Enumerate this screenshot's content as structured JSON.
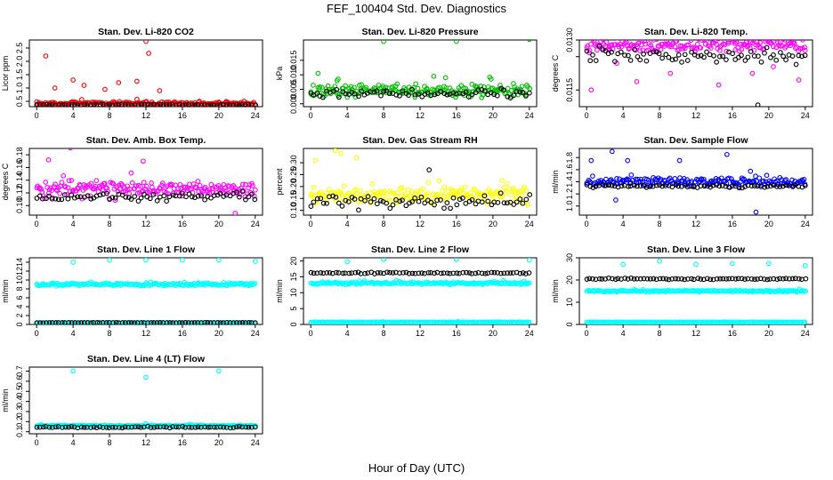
{
  "figure": {
    "title": "FEF_100404  Std. Dev. Diagnostics",
    "xlabel": "Hour of Day (UTC)"
  },
  "chart_data": [
    {
      "type": "scatter",
      "title": "Stan. Dev. Li-820 CO2",
      "ylabel": "Licor ppm",
      "color": "#ff0000",
      "xlim": [
        -0.8,
        24.8
      ],
      "ylim": [
        0.3,
        2.8
      ],
      "x_ticks": [
        0,
        4,
        8,
        12,
        16,
        20,
        24
      ],
      "y_ticks": [
        0.5,
        1.0,
        1.5,
        2.0,
        2.5
      ],
      "y_tick_labels": [
        "0.5",
        "1.0",
        "1.5",
        "2.0",
        "2.5"
      ],
      "series": [
        {
          "color": "#ff0000",
          "base": 0.42,
          "spread": 0.12,
          "outliers": [
            [
              1.0,
              2.2
            ],
            [
              12.0,
              2.75
            ],
            [
              12.3,
              2.3
            ],
            [
              4.0,
              1.3
            ],
            [
              9.0,
              1.2
            ],
            [
              5.2,
              1.1
            ],
            [
              2.0,
              1.0
            ],
            [
              11.0,
              1.25
            ],
            [
              7.5,
              0.95
            ],
            [
              13.5,
              0.9
            ]
          ]
        },
        {
          "color": "#000000",
          "base": 0.37,
          "spread": 0.03,
          "outliers": []
        }
      ]
    },
    {
      "type": "scatter",
      "title": "Stan. Dev. Li-820 Pressure",
      "ylabel": "kPa",
      "color": "#00c000",
      "xlim": [
        -0.8,
        24.8
      ],
      "ylim": [
        -0.001,
        0.022
      ],
      "x_ticks": [
        0,
        4,
        8,
        12,
        16,
        20,
        24
      ],
      "y_ticks": [
        0.0,
        0.005,
        0.01,
        0.015
      ],
      "y_tick_labels": [
        "0.000",
        "0.005",
        "0.010",
        "0.015"
      ],
      "series": [
        {
          "color": "#00c000",
          "base": 0.0045,
          "spread": 0.0035,
          "outliers": [
            [
              8.0,
              0.0215
            ],
            [
              16.0,
              0.0215
            ],
            [
              24.0,
              0.0222
            ],
            [
              0.8,
              0.0105
            ],
            [
              13.5,
              0.0095
            ],
            [
              3.0,
              0.0085
            ],
            [
              14.8,
              0.009
            ],
            [
              19.8,
              0.0085
            ]
          ]
        },
        {
          "color": "#000000",
          "base": 0.0035,
          "spread": 0.0025,
          "outliers": []
        }
      ]
    },
    {
      "type": "scatter",
      "title": "Stan. Dev. Li-820 Temp.",
      "ylabel": "degrees C",
      "color": "#ff00ff",
      "xlim": [
        -0.8,
        24.8
      ],
      "ylim": [
        0.011,
        0.013
      ],
      "x_ticks": [
        0,
        4,
        8,
        12,
        16,
        20,
        24
      ],
      "y_ticks": [
        0.0115,
        0.0125,
        0.013
      ],
      "y_tick_labels": [
        "0.0115",
        "",
        "0.0130"
      ],
      "series": [
        {
          "color": "#ff00ff",
          "base": 0.01285,
          "spread": 0.00035,
          "outliers": [
            [
              0.5,
              0.0115
            ],
            [
              5.5,
              0.01175
            ],
            [
              9.2,
              0.012
            ],
            [
              14.5,
              0.01165
            ],
            [
              23.3,
              0.0118
            ],
            [
              18.2,
              0.012
            ],
            [
              3.3,
              0.0123
            ],
            [
              20.5,
              0.0122
            ]
          ]
        },
        {
          "color": "#000000",
          "base": 0.0125,
          "spread": 0.0004,
          "outliers": [
            [
              18.8,
              0.01105
            ]
          ]
        }
      ]
    },
    {
      "type": "scatter",
      "title": "Stan. Dev. Amb. Box Temp.",
      "ylabel": "degrees C",
      "color": "#ff00ff",
      "xlim": [
        -0.8,
        24.8
      ],
      "ylim": [
        0.085,
        0.19
      ],
      "x_ticks": [
        0,
        4,
        8,
        12,
        16,
        20,
        24
      ],
      "y_ticks": [
        0.1,
        0.12,
        0.14,
        0.16,
        0.18
      ],
      "y_tick_labels": [
        "0.10",
        "0.12",
        "0.14",
        "0.16",
        "0.18"
      ],
      "series": [
        {
          "color": "#ff00ff",
          "base": 0.126,
          "spread": 0.02,
          "outliers": [
            [
              3.7,
              0.191
            ],
            [
              1.3,
              0.172
            ],
            [
              11.7,
              0.17
            ],
            [
              21.8,
              0.088
            ]
          ]
        },
        {
          "color": "#000000",
          "base": 0.114,
          "spread": 0.011,
          "outliers": []
        }
      ]
    },
    {
      "type": "scatter",
      "title": "Stan. Dev. Gas Stream RH",
      "ylabel": "percent",
      "color": "#ffff00",
      "xlim": [
        -0.8,
        24.8
      ],
      "ylim": [
        0.08,
        0.36
      ],
      "x_ticks": [
        0,
        4,
        8,
        12,
        16,
        20,
        24
      ],
      "y_ticks": [
        0.1,
        0.15,
        0.2,
        0.25,
        0.3
      ],
      "y_tick_labels": [
        "0.10",
        "0.15",
        "0.20",
        "0.25",
        "0.30"
      ],
      "series": [
        {
          "color": "#ffff00",
          "base": 0.165,
          "spread": 0.06,
          "outliers": [
            [
              2.7,
              0.35
            ],
            [
              3.3,
              0.34
            ],
            [
              0.5,
              0.31
            ],
            [
              5.0,
              0.32
            ]
          ]
        },
        {
          "color": "#000000",
          "base": 0.135,
          "spread": 0.05,
          "outliers": [
            [
              13.0,
              0.27
            ]
          ]
        }
      ]
    },
    {
      "type": "scatter",
      "title": "Stan. Dev. Sample Flow",
      "ylabel": "ml/min",
      "color": "#0000ff",
      "xlim": [
        -0.8,
        24.8
      ],
      "ylim": [
        0.85,
        1.95
      ],
      "x_ticks": [
        0,
        4,
        8,
        12,
        16,
        20,
        24
      ],
      "y_ticks": [
        1.0,
        1.2,
        1.4,
        1.6,
        1.8
      ],
      "y_tick_labels": [
        "1.0",
        "1.2",
        "1.4",
        "1.6",
        "1.8"
      ],
      "series": [
        {
          "color": "#0000ff",
          "base": 1.4,
          "spread": 0.12,
          "outliers": [
            [
              2.8,
              1.9
            ],
            [
              15.4,
              1.85
            ],
            [
              0.5,
              1.75
            ],
            [
              4.5,
              1.75
            ],
            [
              3.2,
              1.1
            ],
            [
              18.6,
              0.9
            ],
            [
              10.2,
              1.75
            ]
          ]
        },
        {
          "color": "#000000",
          "base": 1.33,
          "spread": 0.04,
          "outliers": []
        }
      ]
    },
    {
      "type": "scatter",
      "title": "Stan. Dev. Line 1 Flow",
      "ylabel": "ml/min",
      "color": "#00ffff",
      "xlim": [
        -0.8,
        24.8
      ],
      "ylim": [
        0,
        15
      ],
      "x_ticks": [
        0,
        4,
        8,
        12,
        16,
        20,
        24
      ],
      "y_ticks": [
        0,
        2,
        4,
        6,
        8,
        10,
        12,
        14
      ],
      "y_tick_labels": [
        "0",
        "2",
        "4",
        "6",
        "8",
        "10",
        "12",
        "14"
      ],
      "series": [
        {
          "color": "#00ffff",
          "base": 9.0,
          "spread": 0.5,
          "outliers": [
            [
              4.0,
              14.0
            ],
            [
              8.0,
              14.5
            ],
            [
              12.0,
              14.5
            ],
            [
              16.0,
              14.5
            ],
            [
              20.0,
              14.5
            ],
            [
              24.0,
              14.2
            ]
          ]
        },
        {
          "color": "#00ffff",
          "base": 0.35,
          "spread": 0.05,
          "outliers": []
        },
        {
          "color": "#000000",
          "base": 0.4,
          "spread": 0.05,
          "outliers": []
        }
      ]
    },
    {
      "type": "scatter",
      "title": "Stan. Dev. Line 2 Flow",
      "ylabel": "ml/min",
      "color": "#00ffff",
      "xlim": [
        -0.8,
        24.8
      ],
      "ylim": [
        0,
        21
      ],
      "x_ticks": [
        0,
        4,
        8,
        12,
        16,
        20,
        24
      ],
      "y_ticks": [
        0,
        5,
        10,
        15,
        20
      ],
      "y_tick_labels": [
        "0",
        "5",
        "10",
        "15",
        "20"
      ],
      "series": [
        {
          "color": "#00ffff",
          "base": 13.0,
          "spread": 0.6,
          "outliers": [
            [
              4.0,
              19.8
            ],
            [
              8.0,
              20.5
            ],
            [
              16.0,
              20.5
            ],
            [
              24.0,
              20.3
            ]
          ]
        },
        {
          "color": "#00ffff",
          "base": 0.7,
          "spread": 0.1,
          "outliers": []
        },
        {
          "color": "#000000",
          "base": 16.2,
          "spread": 0.4,
          "outliers": []
        }
      ]
    },
    {
      "type": "scatter",
      "title": "Stan. Dev. Line 3 Flow",
      "ylabel": "ml/min",
      "color": "#00ffff",
      "xlim": [
        -0.8,
        24.8
      ],
      "ylim": [
        0,
        30
      ],
      "x_ticks": [
        0,
        4,
        8,
        12,
        16,
        20,
        24
      ],
      "y_ticks": [
        0,
        10,
        20,
        30
      ],
      "y_tick_labels": [
        "0",
        "10",
        "20",
        "30"
      ],
      "series": [
        {
          "color": "#00ffff",
          "base": 15.0,
          "spread": 0.6,
          "outliers": [
            [
              4.0,
              27.0
            ],
            [
              8.0,
              28.5
            ],
            [
              12.0,
              27.0
            ],
            [
              16.0,
              27.5
            ],
            [
              20.0,
              27.5
            ],
            [
              24.0,
              26.5
            ]
          ]
        },
        {
          "color": "#00ffff",
          "base": 1.0,
          "spread": 0.15,
          "outliers": []
        },
        {
          "color": "#000000",
          "base": 20.5,
          "spread": 0.6,
          "outliers": []
        }
      ]
    },
    {
      "type": "scatter",
      "title": "Stan. Dev. Line 4 (LT) Flow",
      "ylabel": "ml/min",
      "color": "#00ffff",
      "xlim": [
        -0.8,
        24.8
      ],
      "ylim": [
        0.08,
        0.74
      ],
      "x_ticks": [
        0,
        4,
        8,
        12,
        16,
        20,
        24
      ],
      "y_ticks": [
        0.1,
        0.2,
        0.3,
        0.4,
        0.5,
        0.6,
        0.7
      ],
      "y_tick_labels": [
        "0.1",
        "0.2",
        "0.3",
        "0.4",
        "0.5",
        "0.6",
        "0.7"
      ],
      "series": [
        {
          "color": "#00ffff",
          "base": 0.16,
          "spread": 0.012,
          "outliers": [
            [
              4.0,
              0.7
            ],
            [
              12.0,
              0.64
            ],
            [
              20.0,
              0.7
            ]
          ]
        },
        {
          "color": "#000000",
          "base": 0.145,
          "spread": 0.012,
          "outliers": []
        }
      ]
    }
  ]
}
